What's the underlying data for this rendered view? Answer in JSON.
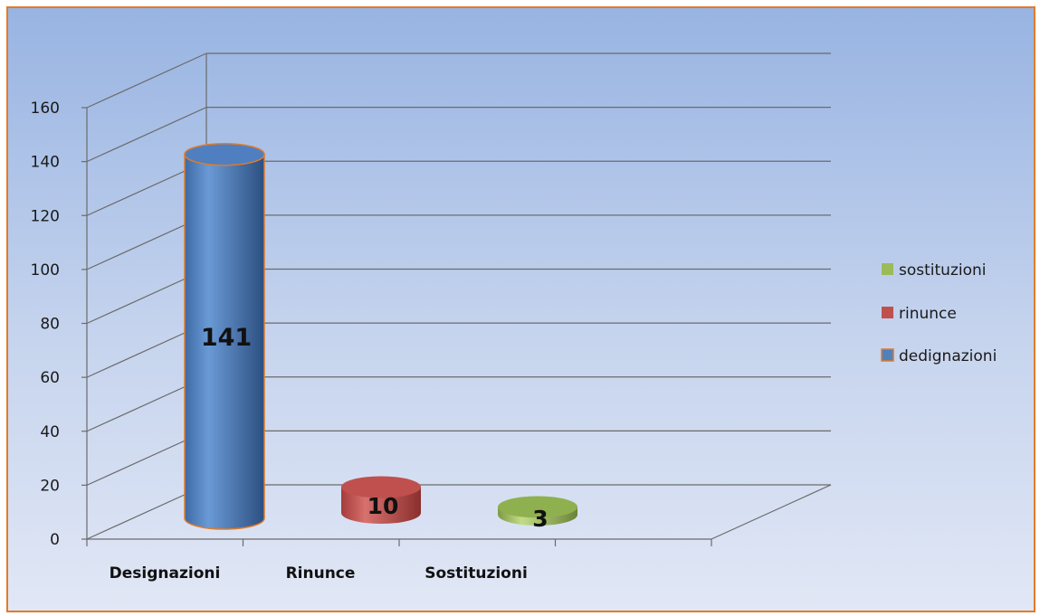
{
  "chart_data": {
    "type": "bar",
    "categories": [
      "Designazioni",
      "Rinunce",
      "Sostituzioni"
    ],
    "values": [
      141,
      10,
      3
    ],
    "data_labels": [
      "141",
      "10",
      "3"
    ],
    "ylim": [
      0,
      160
    ],
    "yticks": [
      0,
      20,
      40,
      60,
      80,
      100,
      120,
      140,
      160
    ],
    "grid": true,
    "three_d": true,
    "bar_shape": "cylinder",
    "legend_position": "right",
    "legend": [
      {
        "label": "sostituzioni",
        "color": "#9bbb59"
      },
      {
        "label": "rinunce",
        "color": "#c0504d"
      },
      {
        "label": "dedignazioni",
        "color": "#4f81bd"
      }
    ],
    "colors": [
      "#4f81bd",
      "#c0504d",
      "#9bbb59"
    ],
    "frame_border_color": "#e07b2a"
  }
}
